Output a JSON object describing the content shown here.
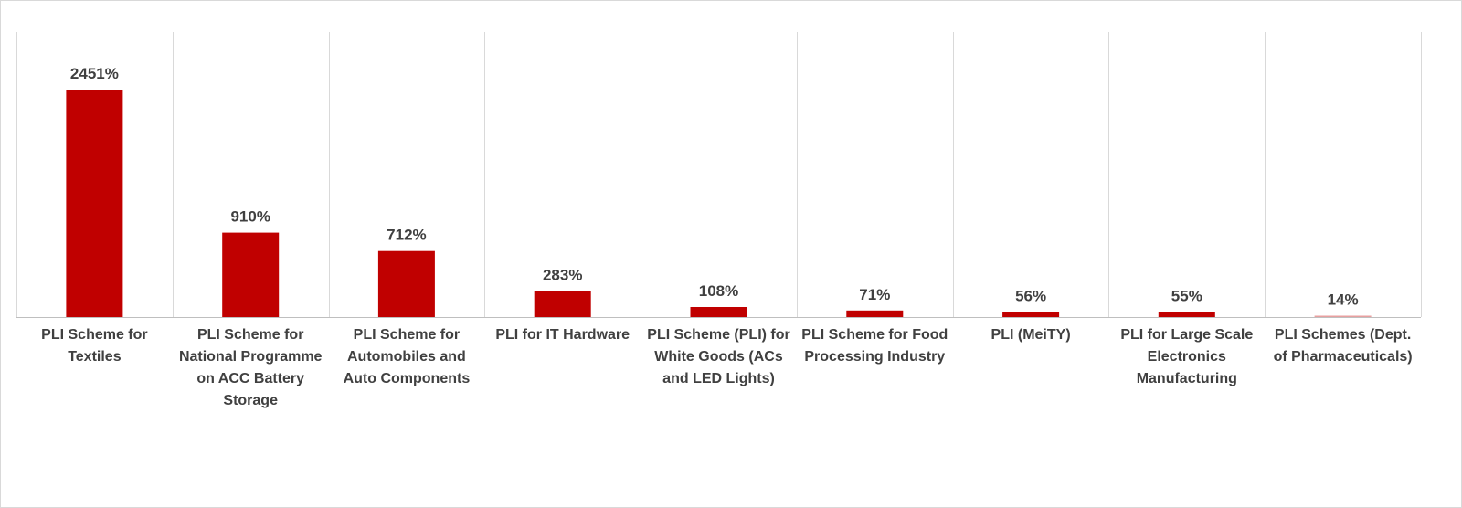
{
  "chart_data": {
    "type": "bar",
    "title": "",
    "xlabel": "",
    "ylabel": "",
    "categories": [
      "PLI Scheme for Textiles",
      "PLI Scheme for National Programme on ACC Battery Storage",
      "PLI Scheme for Automobiles and Auto Components",
      "PLI for IT Hardware",
      "PLI Scheme (PLI) for White Goods (ACs and LED Lights)",
      "PLI Scheme for Food Processing Industry",
      "PLI (MeiTY)",
      "PLI for Large Scale Electronics Manufacturing",
      "PLI Schemes (Dept. of Pharmaceuticals)"
    ],
    "category_label_lines": [
      [
        "PLI Scheme for",
        "Textiles"
      ],
      [
        "PLI Scheme for",
        "National Programme",
        "on ACC Battery",
        "Storage"
      ],
      [
        "PLI Scheme for",
        "Automobiles and",
        "Auto Components"
      ],
      [
        "PLI for IT Hardware"
      ],
      [
        "PLI Scheme (PLI) for",
        "White Goods (ACs",
        "and LED Lights)"
      ],
      [
        "PLI Scheme for Food",
        "Processing Industry"
      ],
      [
        "PLI (MeiTY)"
      ],
      [
        "PLI for Large Scale",
        "Electronics",
        "Manufacturing"
      ],
      [
        "PLI Schemes (Dept.",
        "of Pharmaceuticals)"
      ]
    ],
    "values": [
      2451,
      910,
      712,
      283,
      108,
      71,
      56,
      55,
      14
    ],
    "data_labels": [
      "2451%",
      "910%",
      "712%",
      "283%",
      "108%",
      "71%",
      "56%",
      "55%",
      "14%"
    ],
    "value_unit": "%",
    "ylim": [
      0,
      3000
    ],
    "y_axis_visible": false,
    "grid": "vertical category separators",
    "legend": "none",
    "bar_color": "#c00000",
    "last_bar_color": "#e8a0a0"
  }
}
